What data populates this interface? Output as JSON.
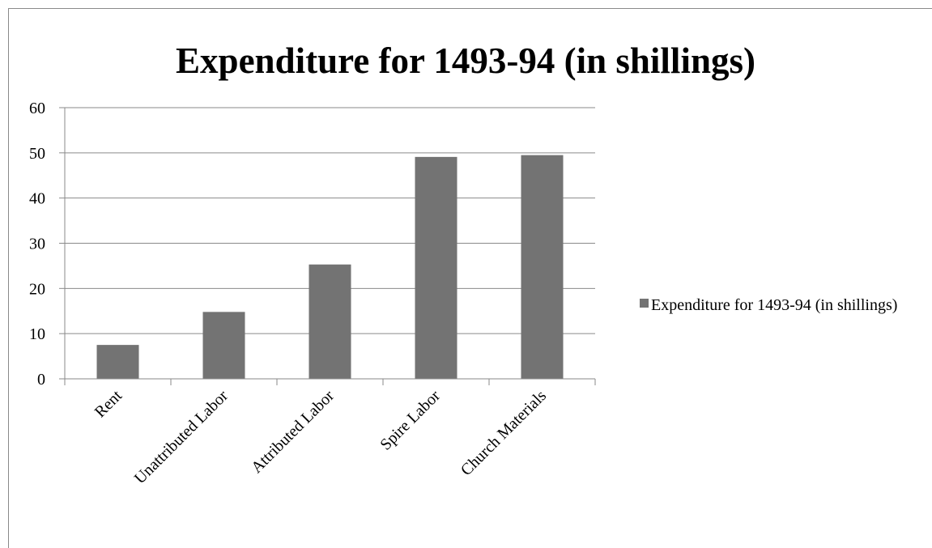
{
  "chart_data": {
    "type": "bar",
    "title": "Expenditure for 1493-94 (in shillings)",
    "categories": [
      "Rent",
      "Unattributed Labor",
      "Attributed Labor",
      "Spire Labor",
      "Church Materials"
    ],
    "series": [
      {
        "name": "Expenditure for 1493-94 (in shillings)",
        "color": "#737373",
        "values": [
          7.5,
          14.8,
          25.3,
          49.1,
          49.5
        ]
      }
    ],
    "ylim": [
      0,
      60
    ],
    "yticks": [
      0,
      10,
      20,
      30,
      40,
      50,
      60
    ],
    "grid": true,
    "legend": "right"
  }
}
